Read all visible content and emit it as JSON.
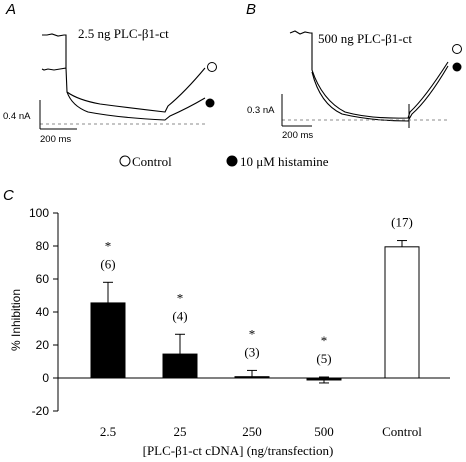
{
  "panel_a": {
    "letter": "A",
    "title": "2.5 ng PLC-β1-ct",
    "scale_current": "0.4 nA",
    "scale_time": "200 ms"
  },
  "panel_b": {
    "letter": "B",
    "title": "500 ng PLC-β1-ct",
    "scale_current": "0.3 nA",
    "scale_time": "200 ms"
  },
  "legend": {
    "control": "Control",
    "histamine": "10 μM histamine"
  },
  "panel_c": {
    "letter": "C"
  },
  "chart_data": {
    "type": "bar",
    "categories": [
      "2.5",
      "25",
      "250",
      "500",
      "Control"
    ],
    "values": [
      45.5,
      14.5,
      0.8,
      -1.2,
      79.5
    ],
    "errors": [
      12.5,
      12.0,
      3.8,
      1.8,
      3.8
    ],
    "n_labels": [
      "(6)",
      "(4)",
      "(3)",
      "(5)",
      "(17)"
    ],
    "significance": [
      "*",
      "*",
      "*",
      "*",
      ""
    ],
    "fills": [
      "#000000",
      "#000000",
      "#000000",
      "#000000",
      "#ffffff"
    ],
    "ylabel": "% Inhibition",
    "xlabel": "[PLC-β1-ct cDNA] (ng/transfection)",
    "ylim": [
      -20,
      100
    ],
    "yticks": [
      "100",
      "80",
      "60",
      "40",
      "20",
      "0",
      "-20"
    ],
    "ytick_values": [
      100,
      80,
      60,
      40,
      20,
      0,
      -20
    ]
  }
}
